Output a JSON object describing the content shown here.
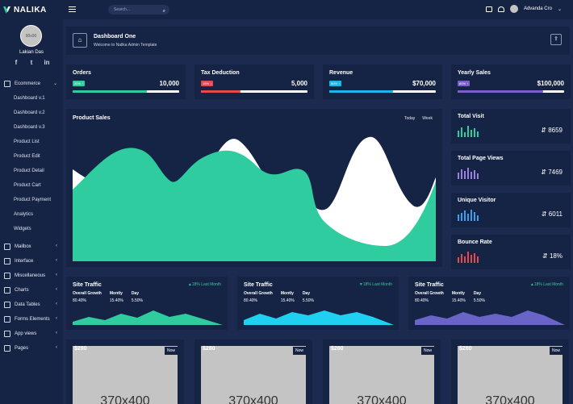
{
  "brand": {
    "name": "NALIKA"
  },
  "user": {
    "avatar_text": "90x90",
    "name": "Lakian Das"
  },
  "socials": [
    "f",
    "t",
    "in"
  ],
  "menu": {
    "ecommerce": "Ecommerce",
    "sub": [
      "Dashboard v.1",
      "Dashboard v.2",
      "Dashboard v.3",
      "Product List",
      "Product Edit",
      "Product Detail",
      "Product Cart",
      "Product Payment",
      "Analytics",
      "Widgets"
    ],
    "items": [
      "Mailbox",
      "Interface",
      "Miscellaneous",
      "Charts",
      "Data Tables",
      "Forms Elements",
      "App views",
      "Pages"
    ]
  },
  "topbar": {
    "search_placeholder": "Search...",
    "user_name": "Advanda Cro"
  },
  "header": {
    "title": "Dashboard One",
    "subtitle": "Welcome to Nalika Admin Template"
  },
  "stats": [
    {
      "title": "Orders",
      "badge": "20% ↑",
      "value": "10,000",
      "color": "#2ecc9f",
      "progress": 0.7
    },
    {
      "title": "Tax Deduction",
      "badge": "15% ↓",
      "value": "5,000",
      "color": "#e24c4c",
      "progress": 0.37
    },
    {
      "title": "Revenue",
      "badge": "50% ↑",
      "value": "$70,000",
      "color": "#1fb5e8",
      "progress": 0.6
    },
    {
      "title": "Yearly Sales",
      "badge": "80% ↑",
      "value": "$100,000",
      "color": "#7b5ecb",
      "progress": 0.8
    }
  ],
  "product_sales": {
    "title": "Product Sales",
    "tab_today": "Today",
    "tab_week": "Week"
  },
  "mini_stats": [
    {
      "title": "Total Visit",
      "value": "8659",
      "color": "#2ecc9f"
    },
    {
      "title": "Total Page Views",
      "value": "7469",
      "color": "#9b7fe0"
    },
    {
      "title": "Unique Visitor",
      "value": "6011",
      "color": "#3aa0ea"
    },
    {
      "title": "Bounce Rate",
      "value": "18%",
      "color": "#e24c4c"
    }
  ],
  "traffic": [
    {
      "title": "Site Traffic",
      "last": "18% Last Month",
      "color": "#2ecc9f"
    },
    {
      "title": "Site Traffic",
      "last": "18% Last Month",
      "color": "#1fd0f0"
    },
    {
      "title": "Site Traffic",
      "last": "18% Last Month",
      "color": "#6a63c8"
    }
  ],
  "traffic_cols": {
    "h1": "Overall Growth",
    "v1": "80.40%",
    "h2": "Montly",
    "v2": "15.40%",
    "h3": "Day",
    "v3": "5.50%"
  },
  "images": [
    {
      "price": "$280",
      "badge": "Now",
      "placeholder": "370x400"
    },
    {
      "price": "$280",
      "badge": "Now",
      "placeholder": "370x400"
    },
    {
      "price": "$280",
      "badge": "Now",
      "placeholder": "370x400"
    },
    {
      "price": "$280",
      "badge": "Now",
      "placeholder": "370x400"
    }
  ]
}
